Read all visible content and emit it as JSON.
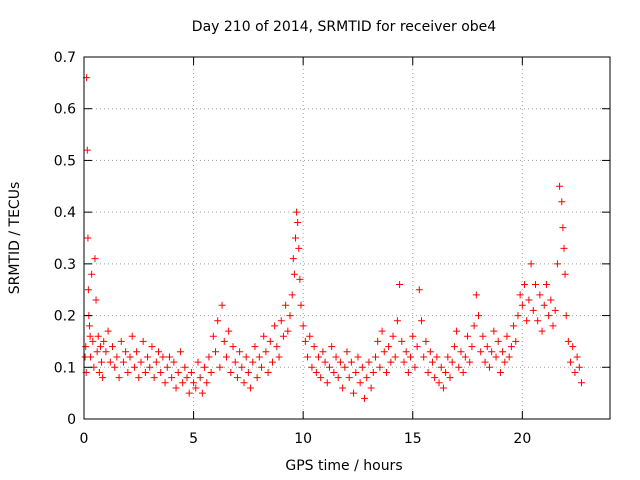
{
  "chart_data": {
    "type": "scatter",
    "title": "Day 210 of 2014, SRMTID for receiver obe4",
    "xlabel": "GPS time / hours",
    "ylabel": "SRMTID / TECUs",
    "xlim": [
      0,
      24
    ],
    "ylim": [
      0,
      0.7
    ],
    "grid": true,
    "marker": "+",
    "x_ticks": [
      0,
      5,
      10,
      15,
      20
    ],
    "x_tick_labels": [
      "0",
      "5",
      "10",
      "15",
      "20"
    ],
    "y_ticks": [
      0,
      0.1,
      0.2,
      0.3,
      0.4,
      0.5,
      0.6,
      0.7
    ],
    "y_tick_labels": [
      "0",
      "0.1",
      "0.2",
      "0.3",
      "0.4",
      "0.5",
      "0.6",
      "0.7"
    ],
    "series": [
      {
        "name": "SRMTID",
        "color": "#ff0000",
        "x": [
          0.05,
          0.08,
          0.1,
          0.12,
          0.15,
          0.18,
          0.2,
          0.22,
          0.25,
          0.28,
          0.3,
          0.35,
          0.4,
          0.45,
          0.5,
          0.55,
          0.6,
          0.65,
          0.7,
          0.75,
          0.8,
          0.85,
          0.9,
          1.0,
          1.1,
          1.2,
          1.3,
          1.4,
          1.5,
          1.6,
          1.7,
          1.8,
          1.9,
          2.0,
          2.1,
          2.2,
          2.3,
          2.4,
          2.5,
          2.6,
          2.7,
          2.8,
          2.9,
          3.0,
          3.1,
          3.2,
          3.3,
          3.4,
          3.5,
          3.6,
          3.7,
          3.8,
          3.9,
          4.0,
          4.1,
          4.2,
          4.3,
          4.4,
          4.5,
          4.6,
          4.7,
          4.8,
          4.9,
          5.0,
          5.1,
          5.2,
          5.3,
          5.4,
          5.5,
          5.6,
          5.7,
          5.8,
          5.9,
          6.0,
          6.1,
          6.2,
          6.3,
          6.4,
          6.5,
          6.6,
          6.7,
          6.8,
          6.9,
          7.0,
          7.1,
          7.2,
          7.3,
          7.4,
          7.5,
          7.6,
          7.7,
          7.8,
          7.9,
          8.0,
          8.1,
          8.2,
          8.3,
          8.4,
          8.5,
          8.6,
          8.7,
          8.8,
          8.9,
          9.0,
          9.1,
          9.2,
          9.3,
          9.4,
          9.5,
          9.55,
          9.6,
          9.65,
          9.7,
          9.75,
          9.8,
          9.85,
          9.9,
          10.0,
          10.1,
          10.2,
          10.3,
          10.4,
          10.5,
          10.6,
          10.7,
          10.8,
          10.9,
          11.0,
          11.1,
          11.2,
          11.3,
          11.4,
          11.5,
          11.6,
          11.7,
          11.8,
          11.9,
          12.0,
          12.1,
          12.2,
          12.3,
          12.4,
          12.5,
          12.6,
          12.7,
          12.8,
          12.9,
          13.0,
          13.1,
          13.2,
          13.3,
          13.4,
          13.5,
          13.6,
          13.7,
          13.8,
          13.9,
          14.0,
          14.1,
          14.2,
          14.3,
          14.4,
          14.5,
          14.6,
          14.7,
          14.8,
          14.9,
          15.0,
          15.1,
          15.2,
          15.3,
          15.4,
          15.5,
          15.6,
          15.7,
          15.8,
          15.9,
          16.0,
          16.1,
          16.2,
          16.3,
          16.4,
          16.5,
          16.6,
          16.7,
          16.8,
          16.9,
          17.0,
          17.1,
          17.2,
          17.3,
          17.4,
          17.5,
          17.6,
          17.7,
          17.8,
          17.9,
          18.0,
          18.1,
          18.2,
          18.3,
          18.4,
          18.5,
          18.6,
          18.7,
          18.8,
          18.9,
          19.0,
          19.1,
          19.2,
          19.3,
          19.4,
          19.5,
          19.6,
          19.7,
          19.8,
          19.9,
          20.0,
          20.1,
          20.2,
          20.3,
          20.4,
          20.5,
          20.6,
          20.7,
          20.8,
          20.9,
          21.0,
          21.1,
          21.2,
          21.3,
          21.4,
          21.5,
          21.6,
          21.7,
          21.8,
          21.85,
          21.9,
          21.95,
          22.0,
          22.1,
          22.2,
          22.3,
          22.4,
          22.5,
          22.6,
          22.7
        ],
        "y": [
          0.12,
          0.14,
          0.09,
          0.66,
          0.52,
          0.35,
          0.25,
          0.2,
          0.18,
          0.16,
          0.12,
          0.28,
          0.15,
          0.1,
          0.31,
          0.23,
          0.13,
          0.16,
          0.09,
          0.14,
          0.11,
          0.08,
          0.15,
          0.13,
          0.17,
          0.11,
          0.14,
          0.1,
          0.12,
          0.08,
          0.15,
          0.11,
          0.13,
          0.09,
          0.12,
          0.16,
          0.1,
          0.13,
          0.08,
          0.11,
          0.15,
          0.09,
          0.12,
          0.1,
          0.14,
          0.08,
          0.11,
          0.13,
          0.09,
          0.12,
          0.07,
          0.1,
          0.12,
          0.08,
          0.11,
          0.06,
          0.09,
          0.13,
          0.07,
          0.1,
          0.08,
          0.05,
          0.09,
          0.07,
          0.06,
          0.11,
          0.08,
          0.05,
          0.1,
          0.07,
          0.12,
          0.09,
          0.16,
          0.13,
          0.19,
          0.1,
          0.22,
          0.15,
          0.12,
          0.17,
          0.09,
          0.14,
          0.11,
          0.08,
          0.13,
          0.1,
          0.07,
          0.12,
          0.09,
          0.06,
          0.11,
          0.14,
          0.08,
          0.12,
          0.1,
          0.16,
          0.13,
          0.09,
          0.15,
          0.11,
          0.18,
          0.14,
          0.12,
          0.19,
          0.16,
          0.22,
          0.17,
          0.2,
          0.24,
          0.31,
          0.28,
          0.35,
          0.4,
          0.38,
          0.33,
          0.27,
          0.22,
          0.18,
          0.15,
          0.12,
          0.16,
          0.1,
          0.14,
          0.09,
          0.12,
          0.08,
          0.13,
          0.11,
          0.07,
          0.1,
          0.14,
          0.09,
          0.12,
          0.08,
          0.11,
          0.06,
          0.1,
          0.13,
          0.08,
          0.11,
          0.05,
          0.09,
          0.12,
          0.07,
          0.1,
          0.04,
          0.08,
          0.11,
          0.06,
          0.09,
          0.12,
          0.15,
          0.1,
          0.17,
          0.13,
          0.09,
          0.14,
          0.11,
          0.16,
          0.12,
          0.19,
          0.26,
          0.15,
          0.11,
          0.13,
          0.09,
          0.12,
          0.16,
          0.1,
          0.14,
          0.25,
          0.19,
          0.12,
          0.15,
          0.09,
          0.13,
          0.11,
          0.08,
          0.12,
          0.07,
          0.1,
          0.06,
          0.09,
          0.12,
          0.08,
          0.11,
          0.14,
          0.17,
          0.1,
          0.13,
          0.09,
          0.12,
          0.16,
          0.11,
          0.14,
          0.18,
          0.24,
          0.2,
          0.13,
          0.16,
          0.11,
          0.14,
          0.1,
          0.13,
          0.17,
          0.12,
          0.15,
          0.09,
          0.13,
          0.11,
          0.16,
          0.12,
          0.14,
          0.18,
          0.15,
          0.2,
          0.24,
          0.22,
          0.26,
          0.19,
          0.23,
          0.3,
          0.21,
          0.26,
          0.19,
          0.24,
          0.17,
          0.22,
          0.26,
          0.2,
          0.23,
          0.18,
          0.21,
          0.3,
          0.45,
          0.42,
          0.37,
          0.33,
          0.28,
          0.2,
          0.15,
          0.11,
          0.14,
          0.09,
          0.12,
          0.1,
          0.07
        ]
      }
    ]
  }
}
